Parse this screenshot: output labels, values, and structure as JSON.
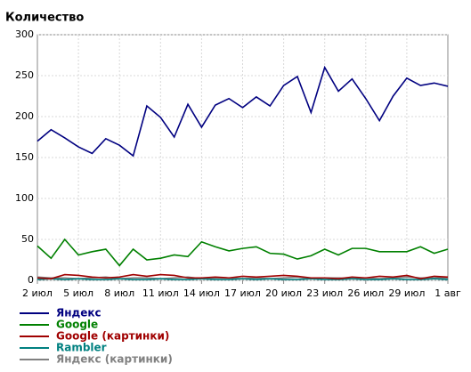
{
  "chart_data": {
    "type": "line",
    "title": "Количество",
    "categories": [
      "2 июл",
      null,
      null,
      "5 июл",
      null,
      null,
      "8 июл",
      null,
      null,
      "11 июл",
      null,
      null,
      "14 июл",
      null,
      null,
      "17 июл",
      null,
      null,
      "20 июл",
      null,
      null,
      "23 июл",
      null,
      null,
      "26 июл",
      null,
      null,
      "29 июл",
      null,
      null,
      "1 авг"
    ],
    "series": [
      {
        "name": "Яндекс",
        "color": "#000080",
        "values": [
          170,
          184,
          174,
          163,
          155,
          173,
          165,
          152,
          213,
          199,
          175,
          215,
          187,
          214,
          222,
          211,
          224,
          213,
          238,
          249,
          205,
          260,
          231,
          246,
          222,
          195,
          225,
          247,
          238,
          241,
          237
        ]
      },
      {
        "name": "Google",
        "color": "#008000",
        "values": [
          42,
          27,
          50,
          31,
          35,
          38,
          18,
          38,
          25,
          27,
          31,
          29,
          47,
          41,
          36,
          39,
          41,
          33,
          32,
          26,
          30,
          38,
          31,
          39,
          39,
          35,
          35,
          35,
          41,
          33,
          38
        ]
      },
      {
        "name": "Google (картинки)",
        "color": "#a00000",
        "values": [
          3,
          2,
          7,
          6,
          4,
          3,
          4,
          7,
          5,
          7,
          6,
          3,
          3,
          4,
          3,
          5,
          4,
          5,
          6,
          5,
          3,
          3,
          2,
          4,
          3,
          5,
          4,
          6,
          2,
          5,
          4
        ]
      },
      {
        "name": "Rambler",
        "color": "#008080",
        "values": [
          1,
          2,
          1,
          2,
          1,
          1,
          2,
          1,
          1,
          2,
          1,
          1,
          2,
          1,
          1,
          2,
          1,
          2,
          1,
          1,
          2,
          1,
          1,
          2,
          1,
          1,
          2,
          1,
          1,
          2,
          1
        ]
      },
      {
        "name": "Яндекс (картинки)",
        "color": "#808080",
        "values": [
          4,
          3,
          3,
          2,
          3,
          4,
          2,
          3,
          3,
          2,
          3,
          4,
          2,
          3,
          3,
          2,
          3,
          2,
          3,
          4,
          2,
          3,
          3,
          2,
          3,
          2,
          3,
          4,
          3,
          3,
          3
        ]
      }
    ],
    "ylim": [
      0,
      300
    ],
    "yticks": [
      0,
      50,
      100,
      150,
      200,
      250,
      300
    ],
    "grid": true
  }
}
